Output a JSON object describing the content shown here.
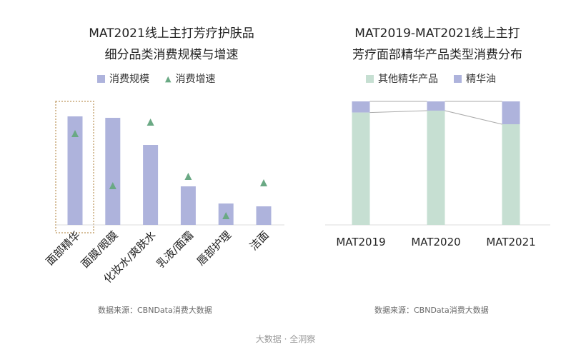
{
  "colors": {
    "bar": "#aeb3dc",
    "tri": "#6aa984",
    "green": "#c6dfd2",
    "purple": "#aeb3dc",
    "highlight": "#c8a878"
  },
  "footer": "大数据 · 全洞察",
  "chart_data": [
    {
      "type": "bar",
      "title_lines": [
        "MAT2021线上主打芳疗护肤品",
        "细分品类消费规模与增速"
      ],
      "legend": [
        "消费规模",
        "消费增速"
      ],
      "categories": [
        "面部精华",
        "面膜/眼膜",
        "化妆水/爽肤水",
        "乳液/面霜",
        "唇部护理",
        "洁面"
      ],
      "series": [
        {
          "name": "消费规模",
          "values": [
            152,
            150,
            112,
            54,
            30,
            26
          ]
        },
        {
          "name": "消费增速",
          "marker": "triangle",
          "values": [
            128,
            55,
            144,
            68,
            13,
            59
          ]
        }
      ],
      "ylim": [
        0,
        160
      ],
      "highlight": "面部精华",
      "source": "数据来源：CBNData消费大数据"
    },
    {
      "type": "bar",
      "stacked": true,
      "title_lines": [
        "MAT2019-MAT2021线上主打",
        "芳疗面部精华产品类型消费分布"
      ],
      "legend": [
        "其他精华产品",
        "精华油"
      ],
      "categories": [
        "MAT2019",
        "MAT2020",
        "MAT2021"
      ],
      "series": [
        {
          "name": "其他精华产品",
          "values": [
            91,
            92.5,
            81.5
          ]
        },
        {
          "name": "精华油",
          "values": [
            9,
            7.5,
            18.5
          ]
        }
      ],
      "ylim": [
        0,
        100
      ],
      "source": "数据来源：CBNData消费大数据"
    }
  ]
}
